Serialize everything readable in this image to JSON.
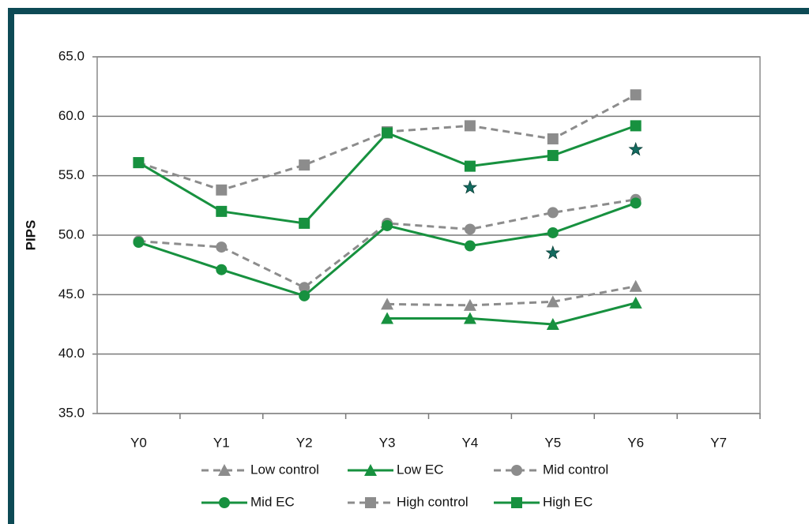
{
  "chart_data": {
    "type": "line",
    "y_label": "PIPS",
    "categories": [
      "Y0",
      "Y1",
      "Y2",
      "Y3",
      "Y4",
      "Y5",
      "Y6",
      "Y7"
    ],
    "ylim": [
      35,
      65
    ],
    "yticks": [
      {
        "value": 35,
        "label": "35.0"
      },
      {
        "value": 40,
        "label": "40.0"
      },
      {
        "value": 45,
        "label": "45.0"
      },
      {
        "value": 50,
        "label": "50.0"
      },
      {
        "value": 55,
        "label": "55.0"
      },
      {
        "value": 60,
        "label": "60.0"
      },
      {
        "value": 65,
        "label": "65.0"
      }
    ],
    "grid": true,
    "series": [
      {
        "name": "Low control",
        "color": "#8c8c8c",
        "dash": true,
        "marker": "triangle",
        "values": [
          null,
          null,
          null,
          44.2,
          44.1,
          44.4,
          45.7,
          null
        ]
      },
      {
        "name": "Low EC",
        "color": "#17913f",
        "dash": false,
        "marker": "triangle",
        "values": [
          null,
          null,
          null,
          43.0,
          43.0,
          42.5,
          44.3,
          null
        ]
      },
      {
        "name": "Mid control",
        "color": "#8c8c8c",
        "dash": true,
        "marker": "circle",
        "values": [
          49.5,
          49.0,
          45.6,
          51.0,
          50.5,
          51.9,
          53.0,
          null
        ]
      },
      {
        "name": "Mid EC",
        "color": "#17913f",
        "dash": false,
        "marker": "circle",
        "values": [
          49.4,
          47.1,
          44.9,
          50.8,
          49.1,
          50.2,
          52.7,
          null
        ]
      },
      {
        "name": "High control",
        "color": "#8c8c8c",
        "dash": true,
        "marker": "square",
        "values": [
          56.1,
          53.8,
          55.9,
          58.7,
          59.2,
          58.1,
          61.8,
          null
        ]
      },
      {
        "name": "High EC",
        "color": "#17913f",
        "dash": false,
        "marker": "square",
        "values": [
          56.1,
          52.0,
          51.0,
          58.6,
          55.8,
          56.7,
          59.2,
          null
        ]
      }
    ],
    "significance": {
      "color": "#136b5f",
      "x": [
        "Y4",
        "Y5",
        "Y6"
      ],
      "y": [
        54.0,
        48.5,
        57.2
      ]
    }
  }
}
